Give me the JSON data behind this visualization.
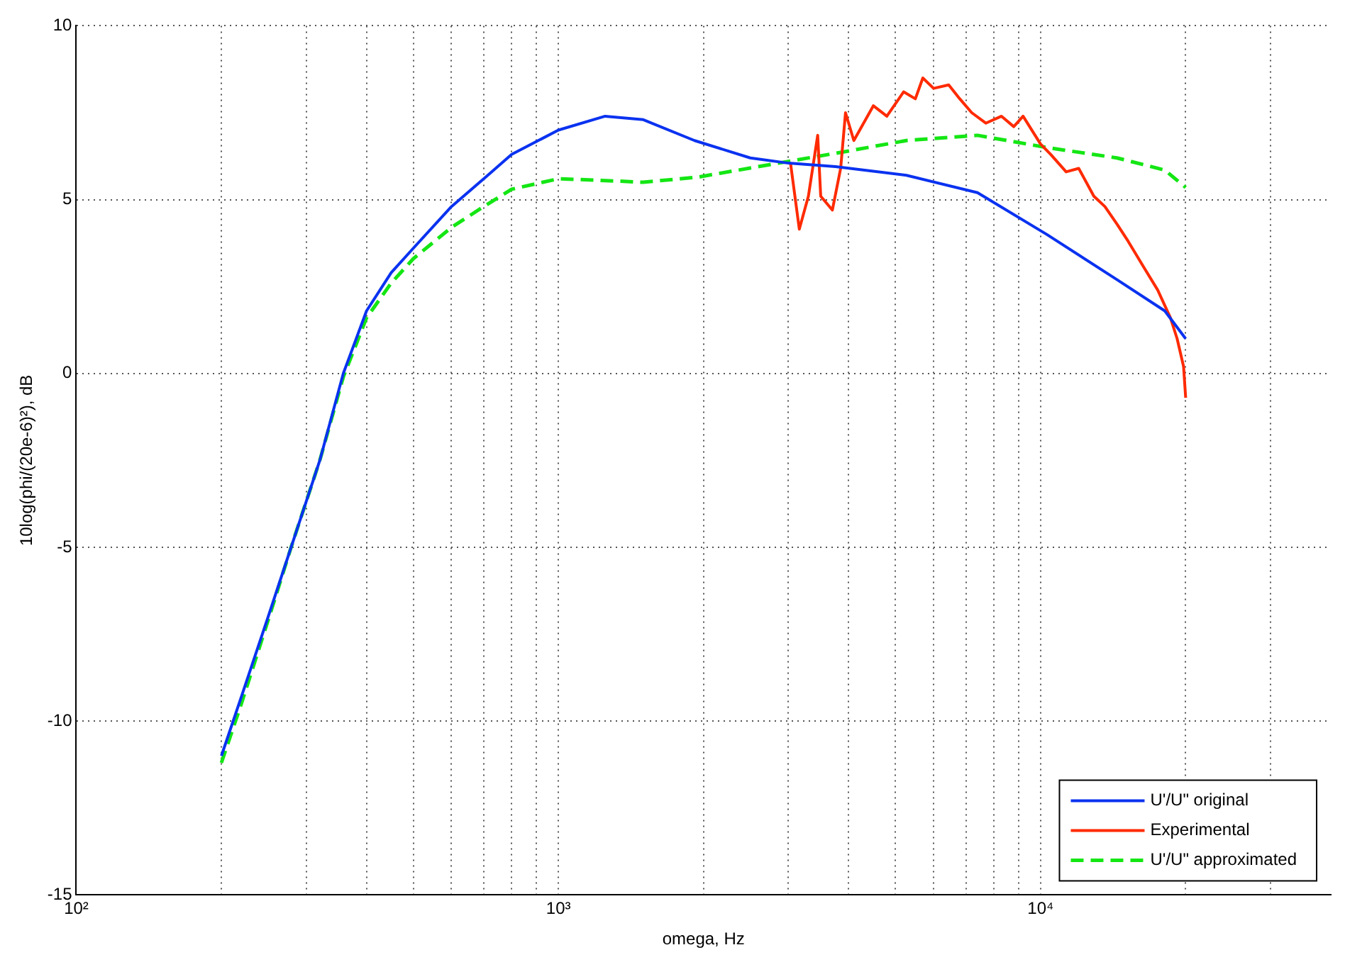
{
  "chart_data": {
    "type": "line",
    "xlabel": "omega, Hz",
    "ylabel": "10log(phi/(20e-6)²), dB",
    "log": "x",
    "grid": true,
    "legend": "bottom right",
    "marker": "none",
    "xlim": [
      100,
      40000
    ],
    "ylim": [
      -15,
      10
    ],
    "yticks": [
      -15,
      -10,
      -5,
      0,
      5,
      10
    ],
    "xticks": [
      {
        "value": 100,
        "label": "10²"
      },
      {
        "value": 200,
        "label": null
      },
      {
        "value": 300,
        "label": null
      },
      {
        "value": 400,
        "label": null
      },
      {
        "value": 500,
        "label": null
      },
      {
        "value": 600,
        "label": null
      },
      {
        "value": 700,
        "label": null
      },
      {
        "value": 800,
        "label": null
      },
      {
        "value": 900,
        "label": null
      },
      {
        "value": 1000,
        "label": "10³"
      },
      {
        "value": 2000,
        "label": null
      },
      {
        "value": 3000,
        "label": null
      },
      {
        "value": 4000,
        "label": null
      },
      {
        "value": 5000,
        "label": null
      },
      {
        "value": 6000,
        "label": null
      },
      {
        "value": 7000,
        "label": null
      },
      {
        "value": 8000,
        "label": null
      },
      {
        "value": 9000,
        "label": null
      },
      {
        "value": 10000,
        "label": "10⁴"
      },
      {
        "value": 20000,
        "label": null
      },
      {
        "value": 30000,
        "label": null
      }
    ],
    "series": [
      {
        "name": "U'/U\" original",
        "color": "#0a32f0",
        "line_style": "solid",
        "x": [
          200,
          220,
          250,
          279,
          320,
          358,
          400,
          450,
          500,
          600,
          700,
          800,
          1000,
          1250,
          1500,
          1916,
          2500,
          3000,
          3755,
          5270,
          7400,
          10300,
          14400,
          18100,
          20000
        ],
        "values": [
          -11,
          -9.3,
          -7,
          -5,
          -2.5,
          0,
          1.8,
          2.9,
          3.6,
          4.8,
          5.6,
          6.3,
          7,
          7.4,
          7.3,
          6.7,
          6.2,
          6.05,
          5.95,
          5.7,
          5.2,
          4,
          2.7,
          1.8,
          1
        ]
      },
      {
        "name": "Experimental",
        "color": "#ff2a00",
        "line_style": "solid",
        "x": [
          3030,
          3160,
          3300,
          3450,
          3500,
          3700,
          3850,
          3940,
          4100,
          4500,
          4800,
          5200,
          5500,
          5700,
          6000,
          6450,
          6800,
          7200,
          7700,
          8300,
          8800,
          9200,
          10000,
          10500,
          11300,
          12000,
          12900,
          13600,
          14400,
          15200,
          16300,
          17500,
          18600,
          19200,
          19800,
          20000
        ],
        "values": [
          6.05,
          4.15,
          5.1,
          6.85,
          5.1,
          4.7,
          5.9,
          7.5,
          6.7,
          7.7,
          7.4,
          8.1,
          7.9,
          8.5,
          8.2,
          8.3,
          7.9,
          7.5,
          7.2,
          7.4,
          7.1,
          7.4,
          6.6,
          6.3,
          5.8,
          5.9,
          5.1,
          4.8,
          4.3,
          3.8,
          3.1,
          2.4,
          1.6,
          1,
          0.2,
          -0.7
        ]
      },
      {
        "name": "U'/U\" approximated",
        "color": "#14e614",
        "line_style": "dashed",
        "x": [
          200,
          220,
          250,
          279,
          320,
          358,
          400,
          450,
          500,
          600,
          700,
          800,
          1000,
          1250,
          1500,
          1950,
          3000,
          4000,
          5270,
          7400,
          10300,
          14400,
          18100,
          20000
        ],
        "values": [
          -11.2,
          -9.5,
          -7.1,
          -5,
          -2.5,
          -0.1,
          1.6,
          2.6,
          3.3,
          4.2,
          4.8,
          5.3,
          5.6,
          5.55,
          5.5,
          5.65,
          6.1,
          6.4,
          6.7,
          6.85,
          6.5,
          6.2,
          5.85,
          5.35
        ]
      }
    ]
  }
}
